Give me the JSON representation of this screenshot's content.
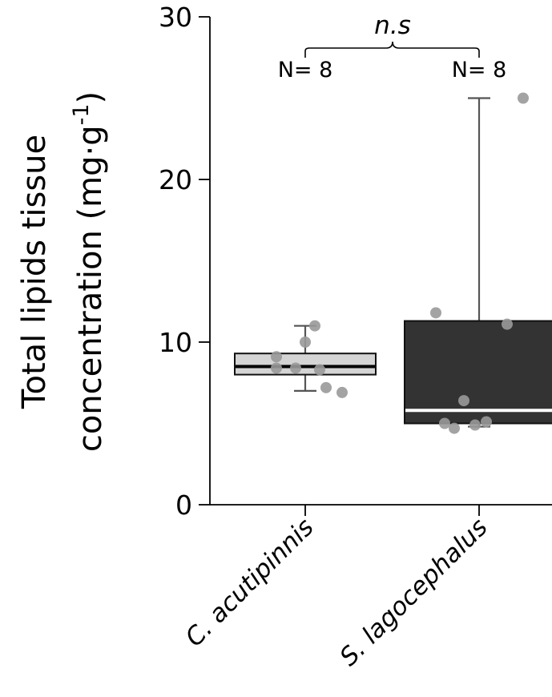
{
  "chart_data": {
    "type": "boxplot",
    "ylabel_line1": "Total lipids tissue",
    "ylabel_line2": "concentration (mg·g",
    "ylabel_superscript": "-1",
    "ylabel_close": ")",
    "ylim": [
      0,
      30
    ],
    "yticks": [
      "0",
      "10",
      "20",
      "30"
    ],
    "ytick_values": [
      0,
      10,
      20,
      30
    ],
    "categories": [
      "C. acutipinnis",
      "S. lagocephalus"
    ],
    "boxes": [
      {
        "category": "C. acutipinnis",
        "n_label": "N= 8",
        "box_color": "#d4d4d4",
        "median_color": "#000000",
        "q1": 8.0,
        "median": 8.5,
        "q3": 9.3,
        "whisker_low": 7.0,
        "whisker_high": 11.0,
        "points": [
          9.1,
          8.4,
          8.4,
          10.0,
          11.0,
          8.3,
          7.2,
          6.9
        ]
      },
      {
        "category": "S. lagocephalus",
        "n_label": "N= 8",
        "box_color": "#333333",
        "median_color": "#ffffff",
        "q1": 5.0,
        "median": 5.8,
        "q3": 11.3,
        "whisker_low": 4.8,
        "whisker_high": 25.0,
        "points": [
          11.8,
          5.0,
          4.7,
          6.4,
          4.9,
          5.1,
          11.1,
          25.0
        ]
      }
    ],
    "significance": "n.s",
    "point_color": "#999999"
  }
}
